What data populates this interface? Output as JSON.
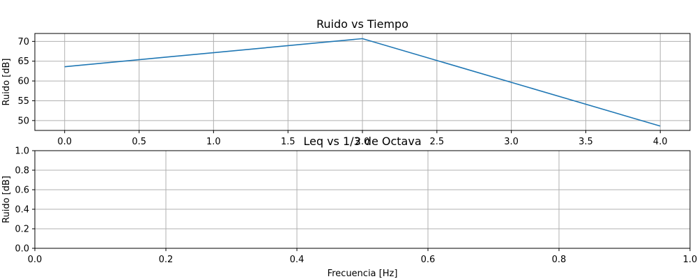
{
  "chart_data": [
    {
      "type": "line",
      "title": "Ruido vs Tiempo",
      "xlabel": "",
      "ylabel": "Ruido [dB]",
      "xlim": [
        -0.2,
        4.2
      ],
      "ylim": [
        47.5,
        72
      ],
      "xticks": [
        0.0,
        0.5,
        1.0,
        1.5,
        2.0,
        2.5,
        3.0,
        3.5,
        4.0
      ],
      "xtick_labels": [
        "0.0",
        "0.5",
        "1.0",
        "1.5",
        "2.0",
        "2.5",
        "3.0",
        "3.5",
        "4.0"
      ],
      "yticks": [
        50,
        55,
        60,
        65,
        70
      ],
      "ytick_labels": [
        "50",
        "55",
        "60",
        "65",
        "70"
      ],
      "grid": true,
      "line_color": "#1f77b4",
      "series": [
        {
          "x": [
            0,
            2,
            4
          ],
          "y": [
            63.6,
            70.7,
            48.6
          ]
        }
      ]
    },
    {
      "type": "line",
      "title": "Leq vs 1/3 de Octava",
      "xlabel": "Frecuencia [Hz]",
      "ylabel": "Ruido [dB]",
      "xlim": [
        0,
        1
      ],
      "ylim": [
        0,
        1
      ],
      "xticks": [
        0.0,
        0.2,
        0.4,
        0.6,
        0.8,
        1.0
      ],
      "xtick_labels": [
        "0.0",
        "0.2",
        "0.4",
        "0.6",
        "0.8",
        "1.0"
      ],
      "yticks": [
        0.0,
        0.2,
        0.4,
        0.6,
        0.8,
        1.0
      ],
      "ytick_labels": [
        "0.0",
        "0.2",
        "0.4",
        "0.6",
        "0.8",
        "1.0"
      ],
      "grid": true,
      "series": []
    }
  ]
}
